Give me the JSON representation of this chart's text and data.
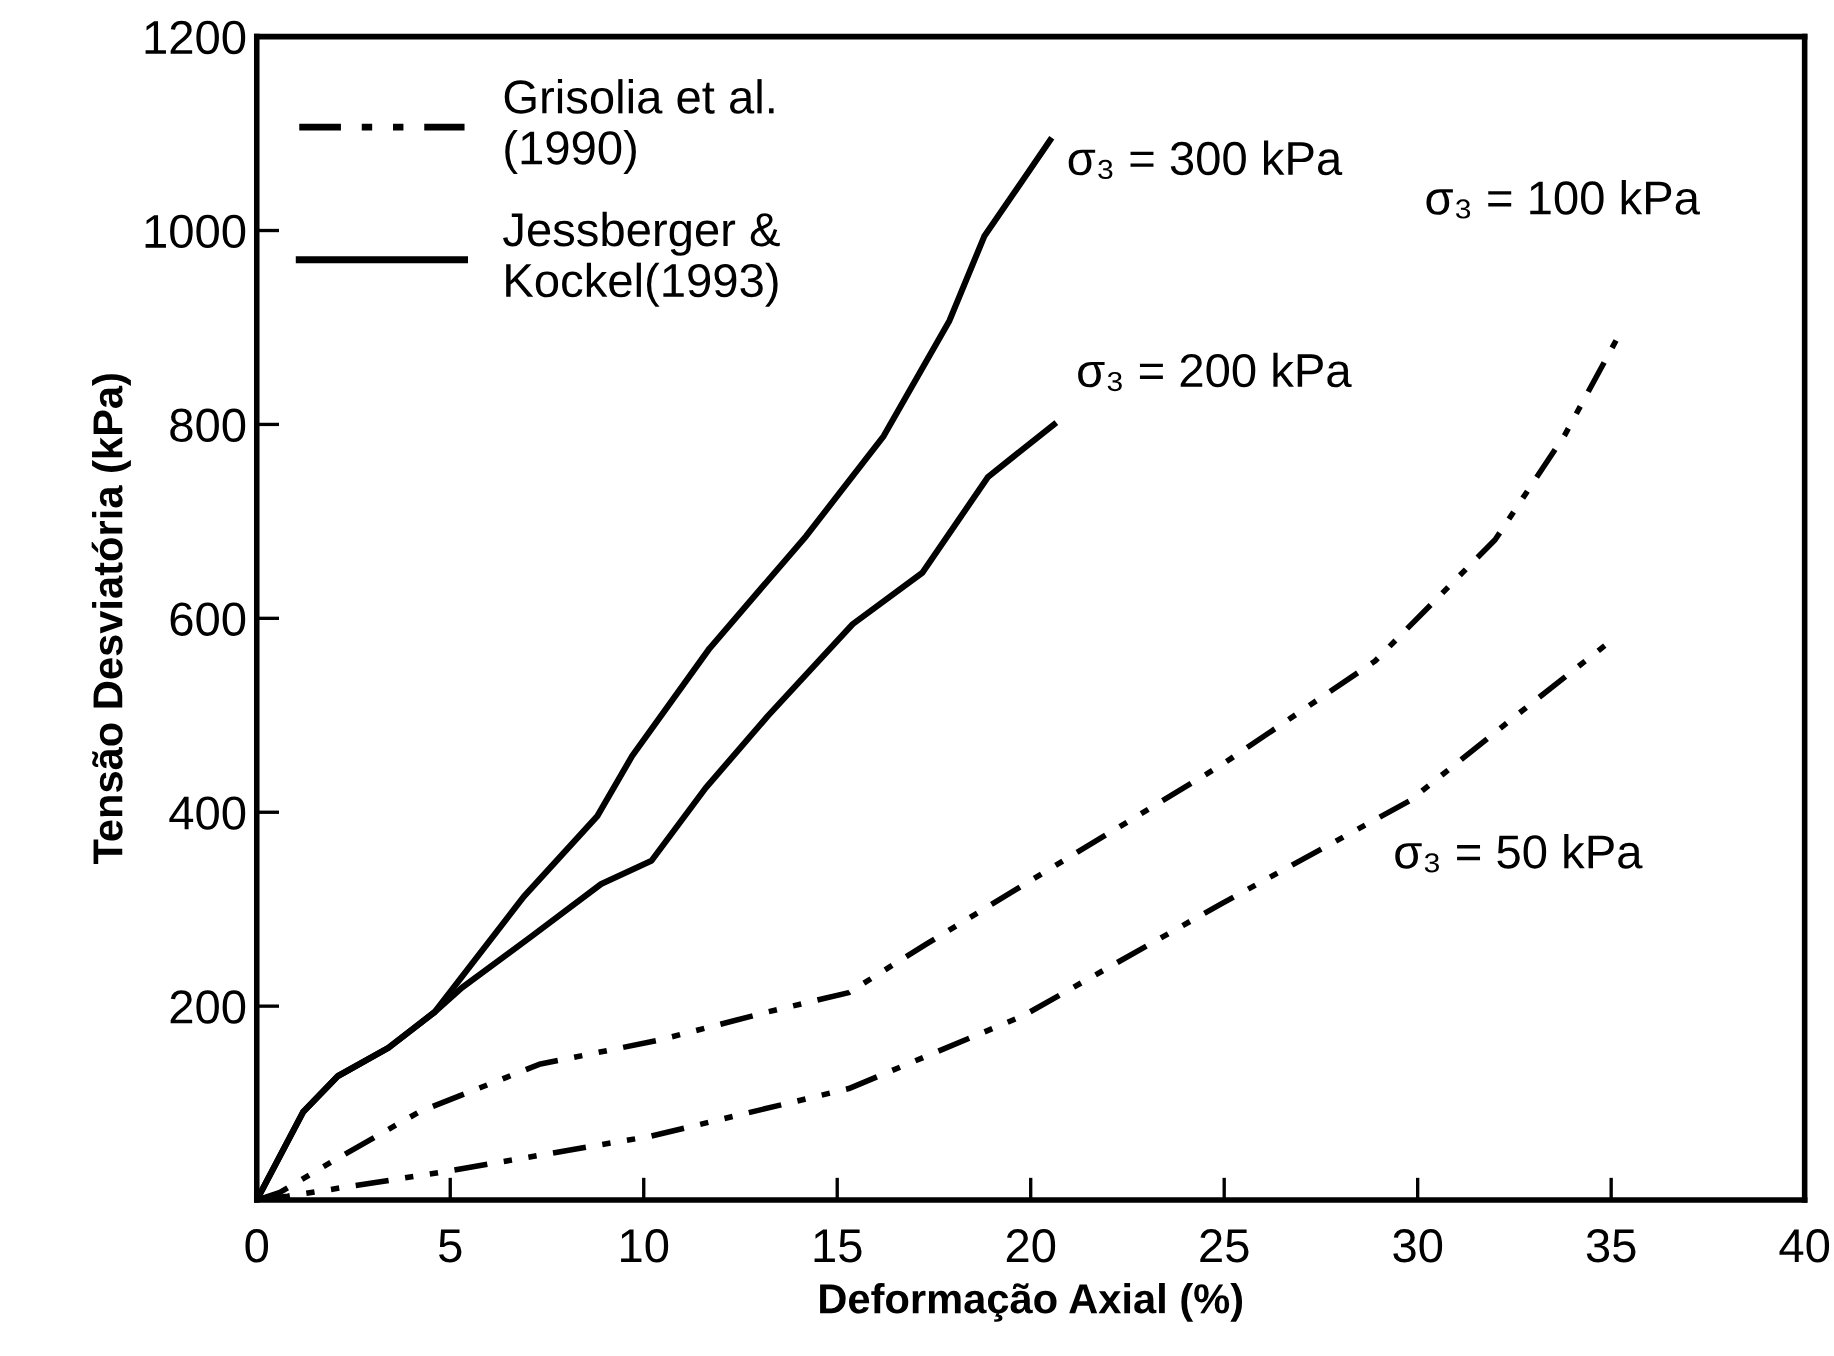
{
  "chart_data": {
    "type": "line",
    "xlabel": "Deformação Axial (%)",
    "ylabel": "Tensão Desviatória (kPa)",
    "xlim": [
      0,
      40
    ],
    "ylim": [
      0,
      1200
    ],
    "xticks": [
      0,
      5,
      10,
      15,
      20,
      25,
      30,
      35,
      40
    ],
    "yticks": [
      200,
      400,
      600,
      800,
      1000,
      1200
    ],
    "grid": false,
    "legend": "top left",
    "marker": "none",
    "series": [
      {
        "name": "Grisolia et al. (1990)",
        "color": "#000000",
        "line_style": "dotted",
        "x": [
          0,
          0.6,
          2.0,
          4.2,
          7.3,
          10.4,
          13.2,
          15.3,
          17.3,
          20.1,
          24.9,
          28.9,
          32.0,
          33.8,
          35.2
        ],
        "values": [
          0,
          8,
          41,
          91,
          140,
          165,
          194,
          214,
          264,
          332,
          448,
          556,
          681,
          789,
          892
        ]
      },
      {
        "color": "#000000",
        "line_style": "dotted",
        "x": [
          0,
          0.8,
          4.8,
          10.2,
          15.3,
          19.8,
          24.9,
          29.8,
          32.9,
          35.0
        ],
        "values": [
          0,
          4,
          29,
          66,
          115,
          190,
          305,
          412,
          511,
          577
        ]
      },
      {
        "name": "Jessberger & Kockel(1993)",
        "color": "#000000",
        "line_style": "solid",
        "x": [
          0,
          1.2,
          2.1,
          3.4,
          4.6,
          6.9,
          8.8,
          9.7,
          11.7,
          14.2,
          16.2,
          17.9,
          18.8,
          20.5
        ],
        "values": [
          0,
          91,
          128,
          157,
          194,
          313,
          396,
          458,
          569,
          685,
          788,
          907,
          994,
          1093
        ]
      },
      {
        "color": "#000000",
        "line_style": "solid",
        "x": [
          0,
          1.2,
          2.1,
          3.4,
          4.6,
          5.3,
          7.1,
          8.9,
          10.2,
          11.6,
          13.2,
          15.4,
          17.2,
          18.9,
          20.6
        ],
        "values": [
          0,
          91,
          128,
          157,
          194,
          219,
          272,
          326,
          350,
          425,
          499,
          594,
          647,
          746,
          800
        ]
      }
    ],
    "annotations": [
      {
        "text": "σ₃ = 300 kPa",
        "x": 20.5,
        "y": 1093
      },
      {
        "text": "σ₃ = 100 kPa",
        "x": 35.2,
        "y": 892
      },
      {
        "text": "σ₃ = 200 kPa",
        "x": 20.6,
        "y": 800
      },
      {
        "text": "σ₃ = 50 kPa",
        "x": 29.8,
        "y": 412
      }
    ]
  }
}
